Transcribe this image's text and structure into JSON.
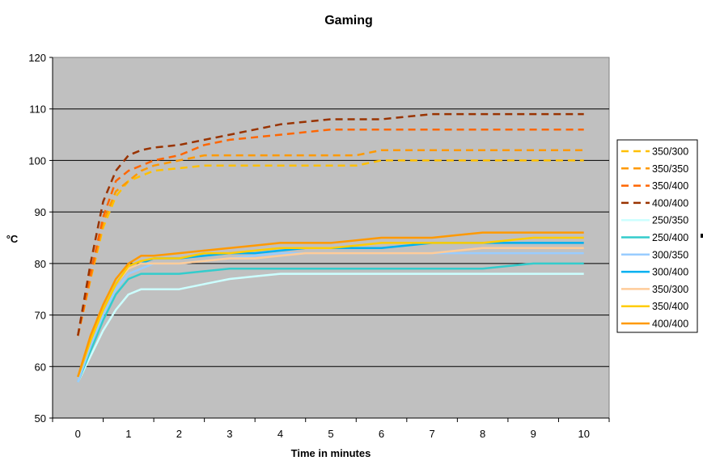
{
  "chart_data": {
    "type": "line",
    "title": "Gaming",
    "xlabel": "Time in minutes",
    "ylabel": "°C",
    "xlim": [
      0,
      10
    ],
    "ylim": [
      50,
      120
    ],
    "x_ticks": [
      "0",
      "1",
      "2",
      "3",
      "4",
      "5",
      "6",
      "7",
      "8",
      "9",
      "10"
    ],
    "y_ticks": [
      "50",
      "60",
      "70",
      "80",
      "90",
      "100",
      "110",
      "120"
    ],
    "grid": "horizontal",
    "background": "#c0c0c0",
    "legend_position": "right",
    "x": [
      0,
      0.25,
      0.5,
      0.75,
      1,
      1.25,
      1.5,
      2,
      2.5,
      3,
      3.5,
      4,
      4.5,
      5,
      5.5,
      6,
      6.5,
      7,
      7.5,
      8,
      8.5,
      9,
      9.5,
      10
    ],
    "series": [
      {
        "name": "350/300",
        "color": "#ffc000",
        "dashed": true,
        "values": [
          66,
          77,
          87,
          93,
          96,
          97,
          98,
          98.5,
          99,
          99,
          99,
          99,
          99,
          99,
          99,
          100,
          100,
          100,
          100,
          100,
          100,
          100,
          100,
          100
        ]
      },
      {
        "name": "350/350",
        "color": "#ff9900",
        "dashed": true,
        "values": [
          66,
          77,
          88,
          94,
          96,
          98,
          99,
          100,
          101,
          101,
          101,
          101,
          101,
          101,
          101,
          102,
          102,
          102,
          102,
          102,
          102,
          102,
          102,
          102
        ]
      },
      {
        "name": "350/400",
        "color": "#ff6600",
        "dashed": true,
        "values": [
          66,
          78,
          89,
          96,
          98,
          99,
          100,
          101,
          103,
          104,
          104.5,
          105,
          105.5,
          106,
          106,
          106,
          106,
          106,
          106,
          106,
          106,
          106,
          106,
          106
        ]
      },
      {
        "name": "400/400",
        "color": "#993300",
        "dashed": true,
        "values": [
          66,
          80,
          92,
          98,
          101,
          102,
          102.5,
          103,
          104,
          105,
          106,
          107,
          107.5,
          108,
          108,
          108,
          108.5,
          109,
          109,
          109,
          109,
          109,
          109,
          109
        ]
      },
      {
        "name": "250/350",
        "color": "#ccffff",
        "dashed": false,
        "values": [
          57,
          62,
          67,
          71,
          74,
          75,
          75,
          75,
          76,
          77,
          77.5,
          78,
          78,
          78,
          78,
          78,
          78,
          78,
          78,
          78,
          78,
          78,
          78,
          78
        ]
      },
      {
        "name": "250/400",
        "color": "#33cccc",
        "dashed": false,
        "values": [
          57,
          63,
          69,
          74,
          77,
          78,
          78,
          78,
          78.5,
          79,
          79,
          79,
          79,
          79,
          79,
          79,
          79,
          79,
          79,
          79,
          79.5,
          80,
          80,
          80
        ]
      },
      {
        "name": "300/350",
        "color": "#99ccff",
        "dashed": false,
        "values": [
          57,
          64,
          70,
          75,
          78,
          79,
          80,
          80,
          80.5,
          81,
          81.5,
          82,
          82,
          82,
          82,
          82,
          82,
          82,
          82,
          82,
          82,
          82,
          82,
          82
        ]
      },
      {
        "name": "300/400",
        "color": "#00b0f0",
        "dashed": false,
        "values": [
          58,
          65,
          71,
          76,
          79,
          80,
          81,
          81,
          81.5,
          82,
          82,
          82.5,
          83,
          83,
          83,
          83,
          83.5,
          84,
          84,
          84,
          84,
          84,
          84,
          84
        ]
      },
      {
        "name": "350/300",
        "color": "#ffcc99",
        "dashed": false,
        "values": [
          58,
          65,
          71,
          76,
          79,
          80,
          80,
          80,
          80.5,
          81,
          81,
          81.5,
          82,
          82,
          82,
          82,
          82,
          82,
          82.5,
          83,
          83,
          83,
          83,
          83
        ]
      },
      {
        "name": "350/400",
        "color": "#ffcc00",
        "dashed": false,
        "values": [
          58,
          65,
          71,
          76,
          79.5,
          80.5,
          81,
          81,
          82,
          82,
          82.5,
          83,
          83,
          83,
          83.5,
          84,
          84,
          84,
          84,
          84,
          84.5,
          85,
          85,
          85
        ]
      },
      {
        "name": "400/400",
        "color": "#ff9900",
        "dashed": false,
        "values": [
          58,
          66,
          72,
          77,
          80,
          81.5,
          81.5,
          82,
          82.5,
          83,
          83.5,
          84,
          84,
          84,
          84.5,
          85,
          85,
          85,
          85.5,
          86,
          86,
          86,
          86,
          86
        ]
      }
    ]
  }
}
